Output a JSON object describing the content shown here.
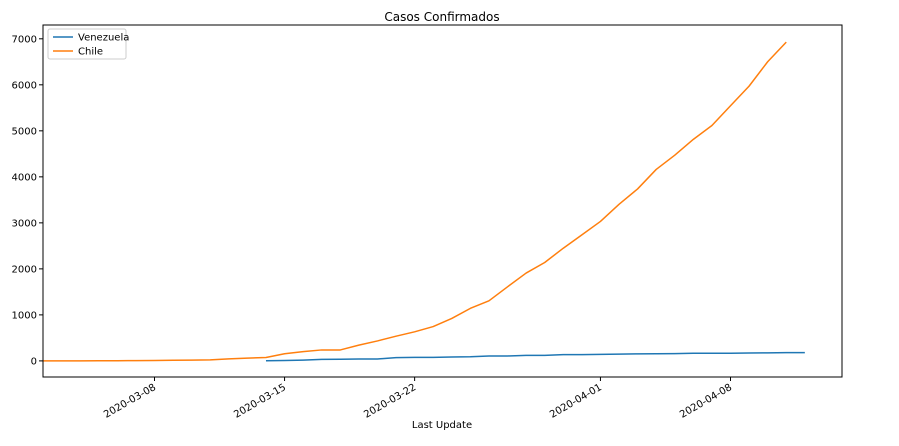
{
  "chart_data": {
    "type": "line",
    "title": "Casos Confirmados",
    "xlabel": "Last Update",
    "ylabel": "",
    "xlim": [
      "2020-03-02",
      "2020-04-14"
    ],
    "ylim": [
      -350,
      7300
    ],
    "yticks": [
      0,
      1000,
      2000,
      3000,
      4000,
      5000,
      6000,
      7000
    ],
    "xticks": [
      "2020-03-08",
      "2020-03-15",
      "2020-03-22",
      "2020-04-01",
      "2020-04-08"
    ],
    "legend_position": "top-left",
    "grid": false,
    "colors": {
      "Venezuela": "#1f77b4",
      "Chile": "#ff7f0e",
      "frame": "#000000"
    },
    "series": [
      {
        "name": "Venezuela",
        "points": [
          [
            "2020-03-14",
            2
          ],
          [
            "2020-03-15",
            10
          ],
          [
            "2020-03-16",
            17
          ],
          [
            "2020-03-17",
            33
          ],
          [
            "2020-03-18",
            36
          ],
          [
            "2020-03-19",
            42
          ],
          [
            "2020-03-20",
            42
          ],
          [
            "2020-03-21",
            70
          ],
          [
            "2020-03-22",
            77
          ],
          [
            "2020-03-23",
            77
          ],
          [
            "2020-03-24",
            84
          ],
          [
            "2020-03-25",
            91
          ],
          [
            "2020-03-26",
            107
          ],
          [
            "2020-03-27",
            107
          ],
          [
            "2020-03-28",
            119
          ],
          [
            "2020-03-29",
            119
          ],
          [
            "2020-03-30",
            135
          ],
          [
            "2020-03-31",
            135
          ],
          [
            "2020-04-01",
            143
          ],
          [
            "2020-04-02",
            146
          ],
          [
            "2020-04-03",
            153
          ],
          [
            "2020-04-04",
            155
          ],
          [
            "2020-04-05",
            159
          ],
          [
            "2020-04-06",
            165
          ],
          [
            "2020-04-07",
            166
          ],
          [
            "2020-04-08",
            167
          ],
          [
            "2020-04-09",
            171
          ],
          [
            "2020-04-10",
            175
          ],
          [
            "2020-04-11",
            181
          ],
          [
            "2020-04-12",
            181
          ]
        ]
      },
      {
        "name": "Chile",
        "points": [
          [
            "2020-03-02",
            0
          ],
          [
            "2020-03-04",
            1
          ],
          [
            "2020-03-05",
            4
          ],
          [
            "2020-03-06",
            4
          ],
          [
            "2020-03-07",
            7
          ],
          [
            "2020-03-08",
            10
          ],
          [
            "2020-03-09",
            13
          ],
          [
            "2020-03-10",
            17
          ],
          [
            "2020-03-11",
            23
          ],
          [
            "2020-03-12",
            43
          ],
          [
            "2020-03-13",
            61
          ],
          [
            "2020-03-14",
            74
          ],
          [
            "2020-03-15",
            155
          ],
          [
            "2020-03-16",
            201
          ],
          [
            "2020-03-17",
            238
          ],
          [
            "2020-03-18",
            238
          ],
          [
            "2020-03-19",
            342
          ],
          [
            "2020-03-20",
            434
          ],
          [
            "2020-03-21",
            537
          ],
          [
            "2020-03-22",
            632
          ],
          [
            "2020-03-23",
            746
          ],
          [
            "2020-03-24",
            922
          ],
          [
            "2020-03-25",
            1142
          ],
          [
            "2020-03-26",
            1306
          ],
          [
            "2020-03-27",
            1610
          ],
          [
            "2020-03-28",
            1909
          ],
          [
            "2020-03-29",
            2139
          ],
          [
            "2020-03-30",
            2449
          ],
          [
            "2020-03-31",
            2738
          ],
          [
            "2020-04-01",
            3031
          ],
          [
            "2020-04-02",
            3404
          ],
          [
            "2020-04-03",
            3737
          ],
          [
            "2020-04-04",
            4161
          ],
          [
            "2020-04-05",
            4471
          ],
          [
            "2020-04-06",
            4815
          ],
          [
            "2020-04-07",
            5116
          ],
          [
            "2020-04-08",
            5546
          ],
          [
            "2020-04-09",
            5972
          ],
          [
            "2020-04-10",
            6501
          ],
          [
            "2020-04-11",
            6927
          ]
        ]
      }
    ]
  }
}
